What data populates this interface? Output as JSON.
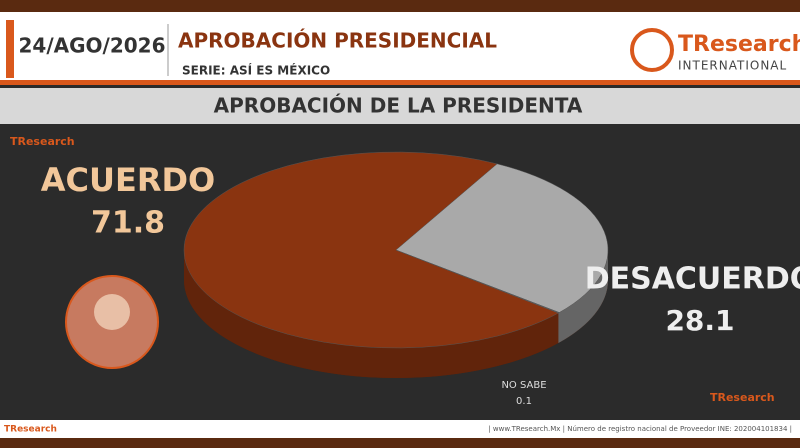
{
  "header": {
    "date": "24/AGO/2026",
    "title": "APROBACIÓN PRESIDENCIAL",
    "subtitle": "SERIE: ASÍ ES MÉXICO",
    "logo": "TResearch",
    "logo_sub": "INTERNATIONAL"
  },
  "chart_data": {
    "type": "pie",
    "title": "APROBACIÓN DE LA PRESIDENTA",
    "categories": [
      "ACUERDO",
      "DESACUERDO",
      "NO SABE"
    ],
    "values": [
      71.8,
      28.1,
      0.1
    ],
    "colors": [
      "#8a3410",
      "#a9a9a9",
      "#6b6b6b"
    ]
  },
  "footer": {
    "text": "| www.TResearch.Mx | Número de registro nacional de Proveedor INE: 202004101834 |"
  }
}
